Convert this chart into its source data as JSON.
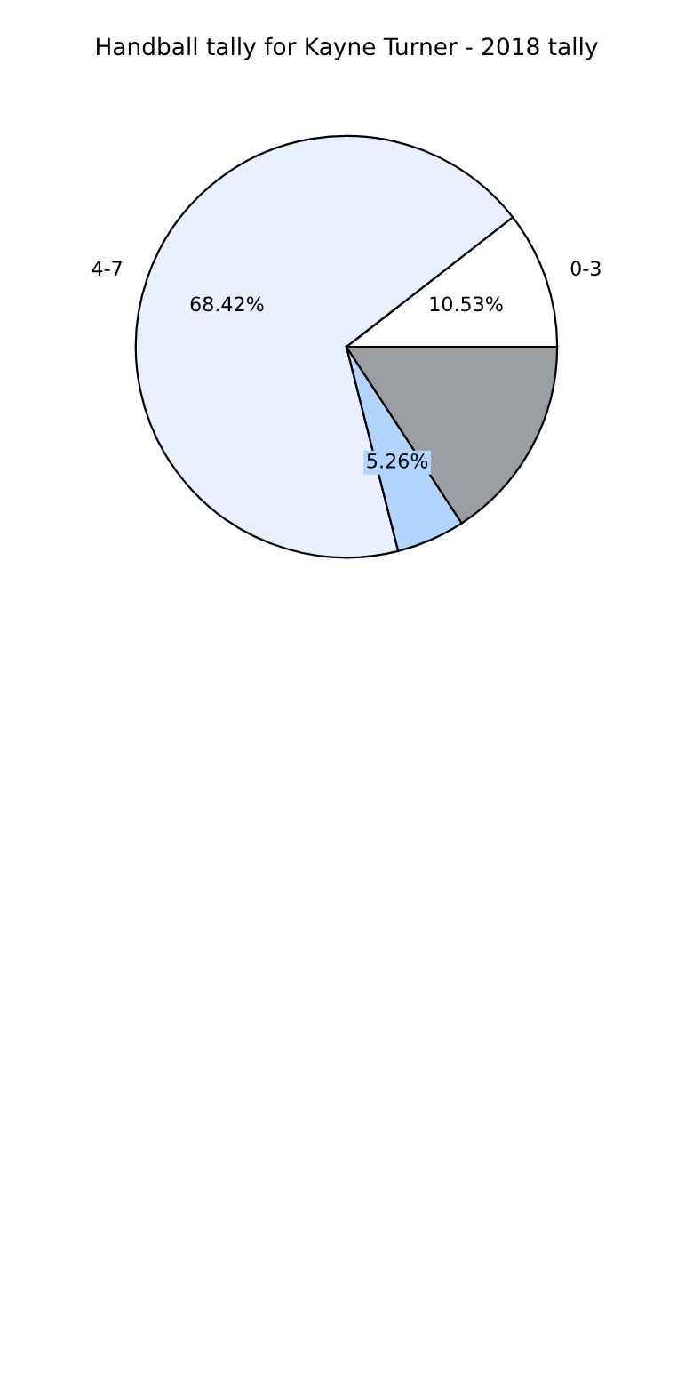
{
  "chart_data": {
    "type": "pie",
    "title": "Handball tally for Kayne Turner - 2018 tally",
    "categories": [
      "0-3",
      "4-7",
      null,
      null
    ],
    "values": [
      10.53,
      68.42,
      5.26,
      15.79
    ],
    "colors": [
      "#ffffff",
      "#e8f0fe",
      "#b3d4fc",
      "#9a9da1"
    ],
    "value_labels": [
      "10.53%",
      "68.42%",
      "5.26%",
      null
    ]
  }
}
